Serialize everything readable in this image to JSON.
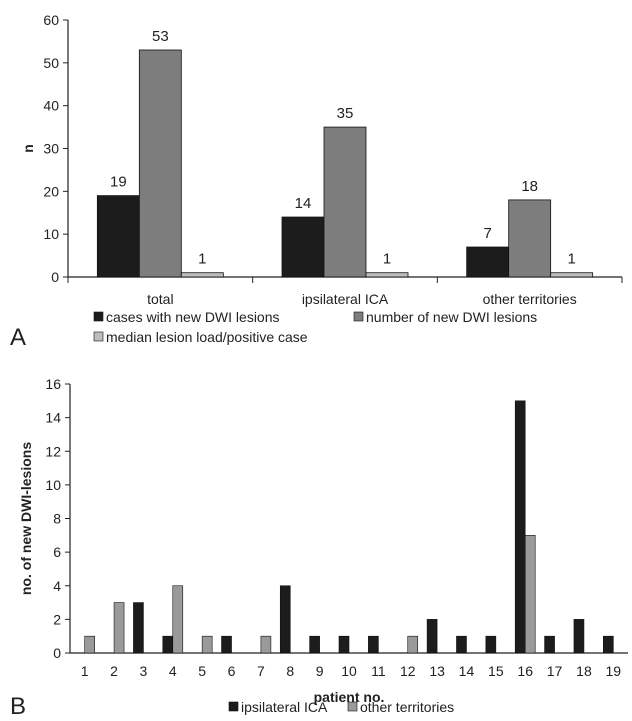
{
  "chart_data": [
    {
      "type": "bar",
      "panel_label": "A",
      "title": "",
      "xlabel": "",
      "ylabel": "n",
      "ylim": [
        0,
        60
      ],
      "yticks": [
        0,
        10,
        20,
        30,
        40,
        50,
        60
      ],
      "categories": [
        "total",
        "ipsilateral ICA",
        "other territories"
      ],
      "series": [
        {
          "name": "cases with new DWI lesions",
          "color": "#1c1c1c",
          "values": [
            19,
            14,
            7
          ]
        },
        {
          "name": "number of new DWI lesions",
          "color": "#7d7d7d",
          "values": [
            53,
            35,
            18
          ]
        },
        {
          "name": "median lesion load/positive case",
          "color": "#bdbdbd",
          "values": [
            1,
            1,
            1
          ]
        }
      ],
      "data_labels": true,
      "grid": false,
      "legend": "bottom"
    },
    {
      "type": "bar",
      "panel_label": "B",
      "title": "",
      "xlabel": "patient no.",
      "ylabel": "no. of new DWI-lesions",
      "ylim": [
        0,
        16
      ],
      "yticks": [
        0,
        2,
        4,
        6,
        8,
        10,
        12,
        14,
        16
      ],
      "categories": [
        "1",
        "2",
        "3",
        "4",
        "5",
        "6",
        "7",
        "8",
        "9",
        "10",
        "11",
        "12",
        "13",
        "14",
        "15",
        "16",
        "17",
        "18",
        "19"
      ],
      "series": [
        {
          "name": "ipsilateral ICA",
          "color": "#1c1c1c",
          "values": [
            0,
            0,
            3,
            1,
            0,
            1,
            0,
            4,
            1,
            1,
            1,
            0,
            2,
            1,
            1,
            15,
            1,
            2,
            1
          ]
        },
        {
          "name": "other territories",
          "color": "#9a9a9a",
          "values": [
            1,
            3,
            0,
            4,
            1,
            0,
            1,
            0,
            0,
            0,
            0,
            1,
            0,
            0,
            0,
            7,
            0,
            0,
            0
          ]
        }
      ],
      "data_labels": false,
      "grid": false,
      "legend": "bottom"
    }
  ]
}
